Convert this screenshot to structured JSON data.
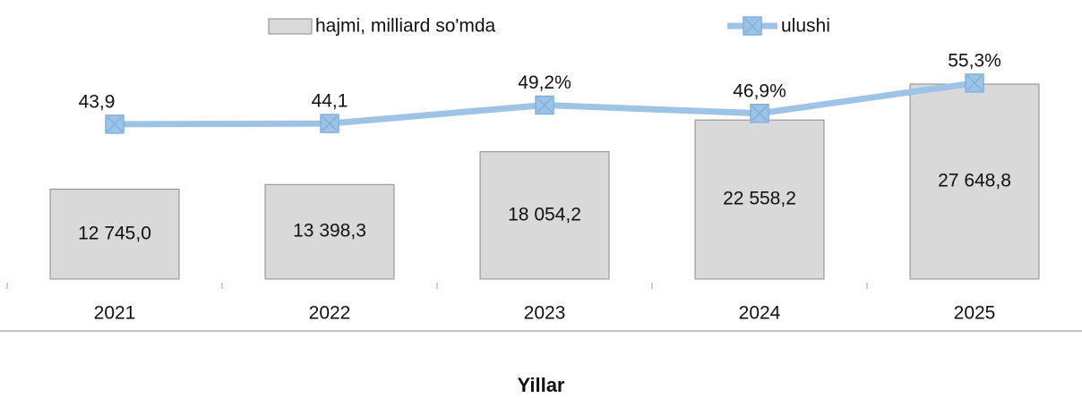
{
  "chart_data": {
    "type": "bar",
    "categories": [
      "2021",
      "2022",
      "2023",
      "2024",
      "2025"
    ],
    "series": [
      {
        "name": "hajmi, milliard so'mda",
        "type": "bar",
        "color": "#d9d9d9",
        "values": [
          12745.0,
          13398.3,
          18054.2,
          22558.2,
          27648.8
        ],
        "value_labels": [
          "12 745,0",
          "13 398,3",
          "18 054,2",
          "22 558,2",
          "27 648,8"
        ]
      },
      {
        "name": "ulushi",
        "type": "line",
        "axis": "y2",
        "color": "#9dc3e6",
        "values": [
          43.9,
          44.1,
          49.2,
          46.9,
          55.3
        ],
        "value_labels": [
          "43,9",
          "44,1",
          "49,2%",
          "46,9%",
          "55,3%"
        ]
      }
    ],
    "xlabel": "Yillar",
    "ylim": [
      0,
      34500
    ],
    "y2lim": [
      1,
      68.4
    ],
    "legend": "top"
  }
}
